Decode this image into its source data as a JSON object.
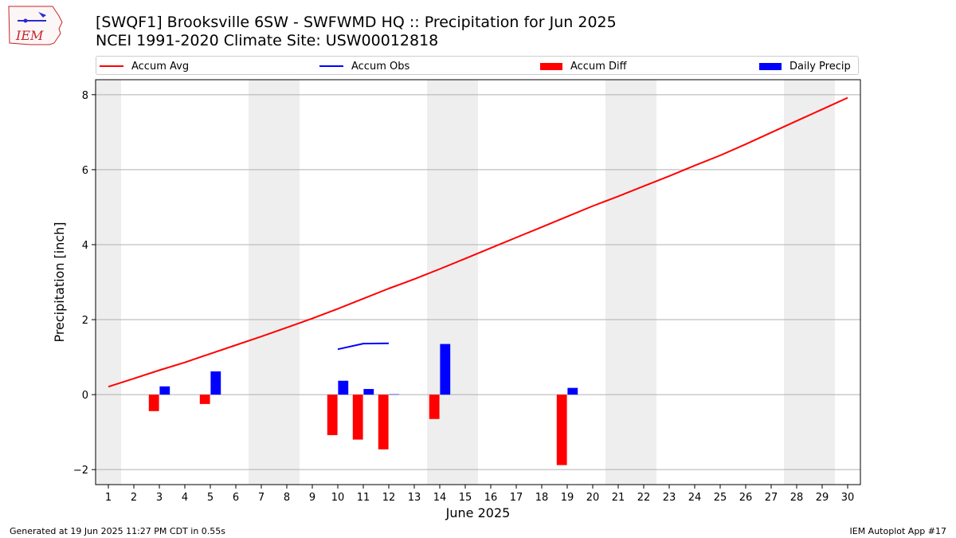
{
  "header": {
    "title_line1": "[SWQF1] Brooksville 6SW - SWFWMD HQ :: Precipitation for Jun 2025",
    "title_line2": "NCEI 1991-2020 Climate Site: USW00012818"
  },
  "logo": {
    "text": "IEM"
  },
  "footer": {
    "left": "Generated at 19 Jun 2025 11:27 PM CDT in 0.55s",
    "right": "IEM Autoplot App #17"
  },
  "colors": {
    "accum_avg": "#ff0000",
    "accum_obs": "#0000ff",
    "accum_diff": "#ff0000",
    "daily_precip": "#0000ff",
    "weekend_band": "#eeeeee",
    "grid": "#b0b0b0"
  },
  "chart_data": {
    "type": "bar",
    "xlabel": "June 2025",
    "ylabel": "Precipitation [inch]",
    "xlim": [
      0.5,
      30.5
    ],
    "ylim": [
      -2.4,
      8.4
    ],
    "x_ticks": [
      "1",
      "2",
      "3",
      "4",
      "5",
      "6",
      "7",
      "8",
      "9",
      "10",
      "11",
      "12",
      "13",
      "14",
      "15",
      "16",
      "17",
      "18",
      "19",
      "20",
      "21",
      "22",
      "23",
      "24",
      "25",
      "26",
      "27",
      "28",
      "29",
      "30"
    ],
    "y_ticks": [
      -2,
      0,
      2,
      4,
      6,
      8
    ],
    "grid": "y",
    "legend_position": "top",
    "weekend_bands": [
      [
        0.5,
        1.5
      ],
      [
        6.5,
        8.5
      ],
      [
        13.5,
        15.5
      ],
      [
        20.5,
        22.5
      ],
      [
        27.5,
        29.5
      ]
    ],
    "series": [
      {
        "name": "Accum Avg",
        "type": "line",
        "color": "#ff0000",
        "x": [
          1,
          2,
          3,
          4,
          5,
          6,
          7,
          8,
          9,
          10,
          11,
          12,
          13,
          14,
          15,
          16,
          17,
          18,
          19,
          20,
          21,
          22,
          23,
          24,
          25,
          26,
          27,
          28,
          29,
          30
        ],
        "values": [
          0.21,
          0.43,
          0.65,
          0.86,
          1.09,
          1.32,
          1.55,
          1.79,
          2.03,
          2.29,
          2.56,
          2.83,
          3.08,
          3.35,
          3.63,
          3.91,
          4.19,
          4.47,
          4.75,
          5.03,
          5.29,
          5.56,
          5.83,
          6.11,
          6.38,
          6.68,
          6.99,
          7.3,
          7.61,
          7.92
        ]
      },
      {
        "name": "Accum Obs",
        "type": "line",
        "color": "#0000ff",
        "x": [
          10,
          11,
          12
        ],
        "values": [
          1.21,
          1.36,
          1.37
        ]
      },
      {
        "name": "Accum Diff",
        "type": "bar",
        "color": "#ff0000",
        "x": [
          3,
          5,
          10,
          11,
          12,
          14,
          19
        ],
        "values": [
          -0.44,
          -0.25,
          -1.08,
          -1.2,
          -1.46,
          -0.65,
          -1.88
        ]
      },
      {
        "name": "Daily Precip",
        "type": "bar",
        "color": "#0000ff",
        "x": [
          3,
          5,
          10,
          11,
          12,
          14,
          19
        ],
        "values": [
          0.22,
          0.62,
          0.37,
          0.15,
          0.01,
          1.35,
          0.18
        ]
      }
    ]
  }
}
